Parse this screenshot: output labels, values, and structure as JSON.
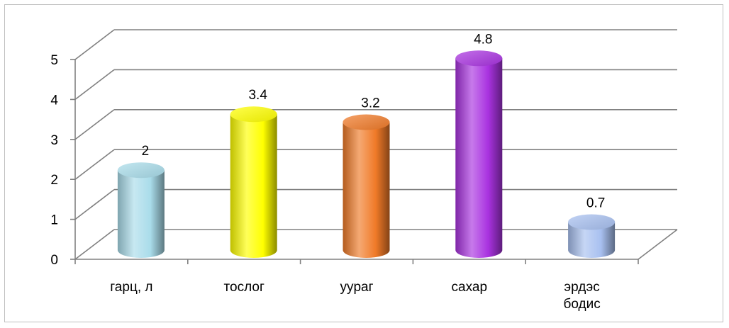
{
  "chart_data": {
    "type": "bar",
    "categories": [
      [
        "гарц, л"
      ],
      [
        "тослог"
      ],
      [
        "ууpaг"
      ],
      [
        "сахар"
      ],
      [
        "эрдэс",
        "бодис"
      ]
    ],
    "values": [
      2,
      3.4,
      3.2,
      4.8,
      0.7
    ],
    "data_labels": [
      "2",
      "3.4",
      "3.2",
      "4.8",
      "0.7"
    ],
    "yticks": [
      "0",
      "1",
      "2",
      "3",
      "4",
      "5"
    ],
    "ylim": [
      0,
      5
    ],
    "grid": true,
    "legend": "none",
    "colors": [
      "#a9dcea",
      "#ffff00",
      "#f07a28",
      "#a932e0",
      "#a8c0f0"
    ],
    "style": "3d-cylinder"
  }
}
